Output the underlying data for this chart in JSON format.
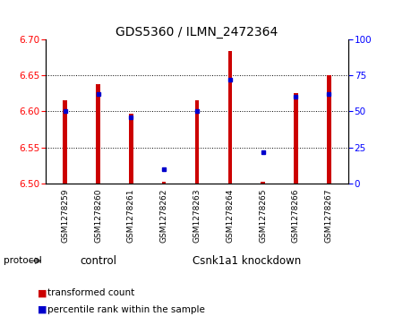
{
  "title": "GDS5360 / ILMN_2472364",
  "samples": [
    "GSM1278259",
    "GSM1278260",
    "GSM1278261",
    "GSM1278262",
    "GSM1278263",
    "GSM1278264",
    "GSM1278265",
    "GSM1278266",
    "GSM1278267"
  ],
  "red_values": [
    6.615,
    6.638,
    6.597,
    6.503,
    6.615,
    6.683,
    6.503,
    6.625,
    6.65
  ],
  "blue_values_pct": [
    50,
    62,
    46,
    10,
    50,
    72,
    22,
    60,
    62
  ],
  "ylim_left": [
    6.5,
    6.7
  ],
  "ylim_right": [
    0,
    100
  ],
  "yticks_left": [
    6.5,
    6.55,
    6.6,
    6.65,
    6.7
  ],
  "yticks_right": [
    0,
    25,
    50,
    75,
    100
  ],
  "bar_baseline": 6.5,
  "bar_color": "#cc0000",
  "dot_color": "#0000cc",
  "bar_width": 0.12,
  "control_samples": 3,
  "control_label": "control",
  "knockdown_label": "Csnk1a1 knockdown",
  "protocol_label": "protocol",
  "legend_red": "transformed count",
  "legend_blue": "percentile rank within the sample",
  "tick_area_bg": "#d3d3d3",
  "green_bg": "#90ee90",
  "white_divider": "#ffffff"
}
